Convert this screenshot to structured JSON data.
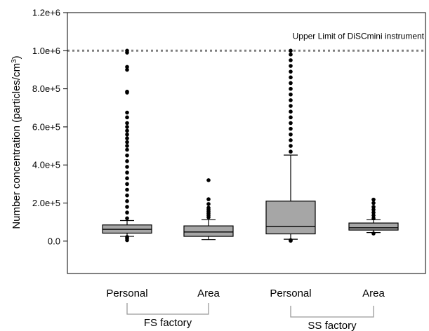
{
  "chart_data": {
    "type": "box",
    "ylabel_prefix": "Number concentration (particles/cm",
    "ylabel_sup": "3",
    "ylabel_suffix": ")",
    "ylim": [
      -170000,
      1200000
    ],
    "yticks": [
      {
        "value": 0,
        "label": "0.0"
      },
      {
        "value": 200000,
        "label": "2.0e+5"
      },
      {
        "value": 400000,
        "label": "4.0e+5"
      },
      {
        "value": 600000,
        "label": "6.0e+5"
      },
      {
        "value": 800000,
        "label": "8.0e+5"
      },
      {
        "value": 1000000,
        "label": "1.0e+6"
      },
      {
        "value": 1200000,
        "label": "1.2e+6"
      }
    ],
    "reference_line": {
      "value": 1000000,
      "label": "Upper Limit of DiSCmini instrument"
    },
    "groups": [
      {
        "label": "FS factory",
        "members": [
          0,
          1
        ]
      },
      {
        "label": "SS factory",
        "members": [
          2,
          3
        ]
      }
    ],
    "boxes": [
      {
        "label": "Personal",
        "q1": 42000,
        "median": 62000,
        "q3": 85000,
        "whisker_low": 25000,
        "whisker_high": 108000,
        "outliers": [
          5000,
          15000,
          22000,
          120000,
          150000,
          180000,
          210000,
          240000,
          270000,
          300000,
          330000,
          360000,
          390000,
          420000,
          450000,
          480000,
          500000,
          520000,
          540000,
          560000,
          580000,
          600000,
          620000,
          650000,
          675000,
          780000,
          785000,
          900000,
          915000,
          990000,
          1000000
        ]
      },
      {
        "label": "Area",
        "q1": 25000,
        "median": 48000,
        "q3": 80000,
        "whisker_low": 8000,
        "whisker_high": 112000,
        "outliers": [
          125000,
          135000,
          145000,
          155000,
          165000,
          175000,
          195000,
          220000,
          320000
        ]
      },
      {
        "label": "Personal",
        "q1": 38000,
        "median": 78000,
        "q3": 210000,
        "whisker_low": 10000,
        "whisker_high": 452000,
        "outliers": [
          2000,
          5000,
          470000,
          500000,
          530000,
          560000,
          590000,
          620000,
          650000,
          680000,
          710000,
          740000,
          770000,
          800000,
          830000,
          860000,
          890000,
          920000,
          950000,
          980000,
          1000000
        ]
      },
      {
        "label": "Area",
        "q1": 58000,
        "median": 70000,
        "q3": 95000,
        "whisker_low": 45000,
        "whisker_high": 112000,
        "outliers": [
          40000,
          120000,
          135000,
          150000,
          165000,
          180000,
          200000,
          218000
        ]
      }
    ],
    "colors": {
      "box_fill": "#a6a6a6",
      "reference_line": "#808080",
      "axis": "#000000"
    }
  }
}
